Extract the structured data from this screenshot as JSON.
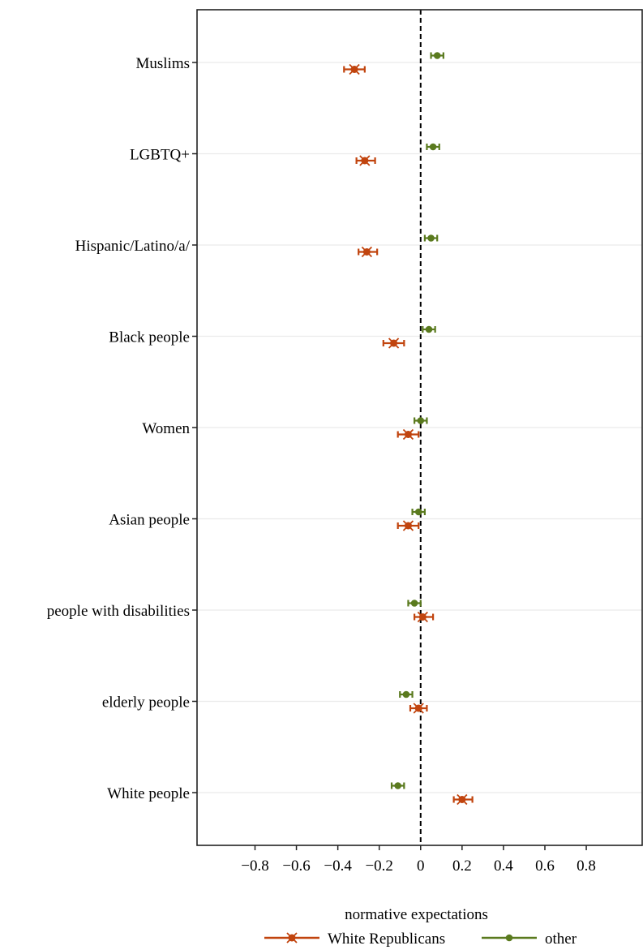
{
  "chart_data": {
    "type": "scatter",
    "subtype": "dot-and-whisker (point estimates with error bars)",
    "title": "",
    "xlabel": "normative expectations",
    "ylabel": "",
    "xlim": [
      -1.08,
      1.07
    ],
    "xticks": [
      -0.8,
      -0.6,
      -0.4,
      -0.2,
      0,
      0.2,
      0.4,
      0.6,
      0.8
    ],
    "xtick_labels": [
      "−0.8",
      "−0.6",
      "−0.4",
      "−0.2",
      "0",
      "0.2",
      "0.4",
      "0.6",
      "0.8"
    ],
    "reference_line": {
      "x": 0,
      "style": "dashed",
      "color": "#000000"
    },
    "grid": "horizontal major gridlines only",
    "legend": {
      "position": "bottom",
      "orientation": "horizontal"
    },
    "categories": [
      "Muslims",
      "LGBTQ+",
      "Hispanic/Latino/a/",
      "Black people",
      "Women",
      "Asian people",
      "people with disabilities",
      "elderly people",
      "White people"
    ],
    "series": [
      {
        "name": "White Republicans",
        "color": "#c1440e",
        "marker": "x-circle",
        "values": [
          -0.32,
          -0.27,
          -0.26,
          -0.13,
          -0.06,
          -0.06,
          0.01,
          -0.01,
          0.2
        ],
        "lower": [
          -0.37,
          -0.31,
          -0.3,
          -0.18,
          -0.11,
          -0.11,
          -0.03,
          -0.05,
          0.16
        ],
        "upper": [
          -0.27,
          -0.22,
          -0.21,
          -0.08,
          -0.01,
          -0.01,
          0.06,
          0.03,
          0.25
        ]
      },
      {
        "name": "other",
        "color": "#5a7a1e",
        "marker": "circle",
        "values": [
          0.08,
          0.06,
          0.05,
          0.04,
          0.0,
          -0.01,
          -0.03,
          -0.07,
          -0.11
        ],
        "lower": [
          0.05,
          0.03,
          0.02,
          0.01,
          -0.03,
          -0.04,
          -0.06,
          -0.1,
          -0.14
        ],
        "upper": [
          0.11,
          0.09,
          0.08,
          0.07,
          0.03,
          0.02,
          0.0,
          -0.04,
          -0.08
        ]
      }
    ]
  }
}
